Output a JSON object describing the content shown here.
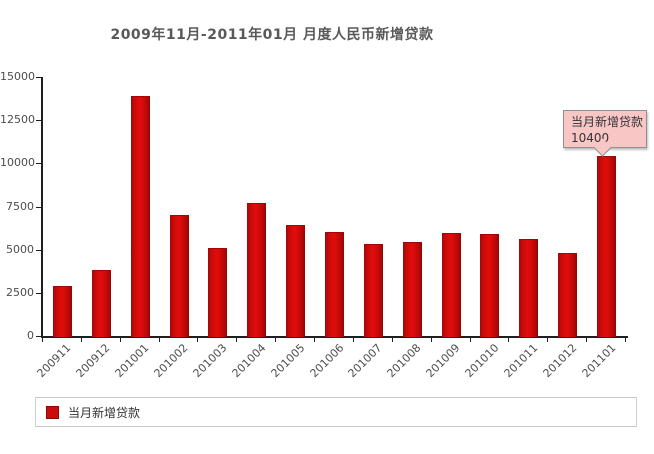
{
  "title": "2009年11月-2011年01月 月度人民币新增贷款",
  "legend": {
    "label": "当月新增贷款"
  },
  "tooltip": {
    "label": "当月新增贷款",
    "value": "10400",
    "target_category": "201101"
  },
  "colors": {
    "bar": "#d40b0b",
    "bar_edge": "#9c0a0a",
    "axis": "#1f1f1f",
    "text": "#4d4d4d",
    "tooltip_bg": "#f9c6c6",
    "tooltip_border": "#909090",
    "legend_border": "#cccccc"
  },
  "chart_data": {
    "type": "bar",
    "title": "2009年11月-2011年01月 月度人民币新增贷款",
    "categories": [
      "200911",
      "200912",
      "201001",
      "201002",
      "201003",
      "201004",
      "201005",
      "201006",
      "201007",
      "201008",
      "201009",
      "201010",
      "201011",
      "201012",
      "201101"
    ],
    "series": [
      {
        "name": "当月新增贷款",
        "values": [
          2900,
          3800,
          13900,
          7000,
          5100,
          7700,
          6400,
          6000,
          5300,
          5450,
          5950,
          5880,
          5640,
          4800,
          10400
        ]
      }
    ],
    "xlabel": "",
    "ylabel": "",
    "ylim": [
      0,
      15000
    ],
    "yticks": [
      0,
      2500,
      5000,
      7500,
      10000,
      12500,
      15000
    ],
    "grid": false,
    "legend_position": "bottom",
    "annotation": {
      "text": "当月新增贷款 10400",
      "category": "201101"
    }
  }
}
